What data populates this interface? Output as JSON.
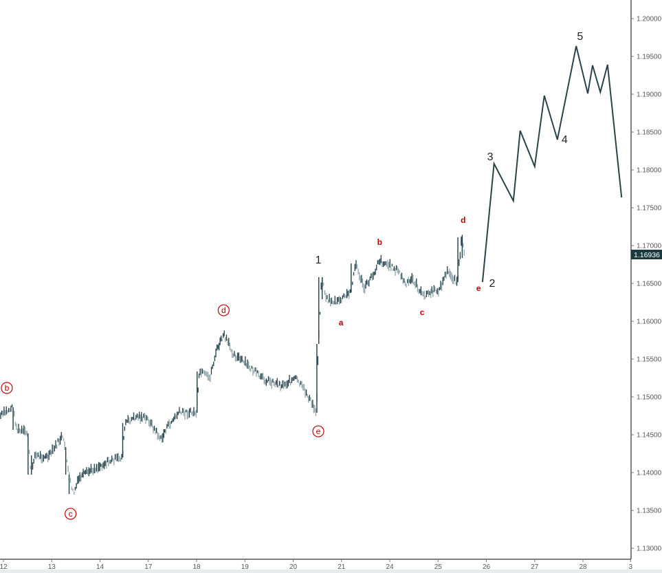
{
  "chart_data": {
    "type": "line",
    "title": "",
    "xlabel": "",
    "ylabel": "",
    "x_ticks": [
      "12",
      "13",
      "14",
      "17",
      "18",
      "19",
      "20",
      "21",
      "24",
      "25",
      "26",
      "27",
      "28",
      "3"
    ],
    "y_ticks": [
      "1.20000",
      "1.19500",
      "1.19000",
      "1.18500",
      "1.18000",
      "1.17500",
      "1.17000",
      "1.16500",
      "1.16000",
      "1.15500",
      "1.15000",
      "1.14500",
      "1.14000",
      "1.13500",
      "1.13000"
    ],
    "ylim": [
      1.13,
      1.2
    ],
    "grid": false,
    "current_price": "1.16936",
    "colors": {
      "bars_dark": "#1e3d44",
      "bars_light": "#8fa4a9",
      "projection": "#2b4348",
      "wave_labels": "#222222",
      "sub_labels": "#c00000",
      "price_tag": "#1b3a40"
    },
    "price_series": {
      "style": "bars",
      "points": [
        [
          11.93,
          1.14746
        ],
        [
          12.19,
          1.14864
        ],
        [
          12.28,
          1.14564
        ],
        [
          12.5,
          1.14518
        ],
        [
          12.57,
          1.13973
        ],
        [
          12.64,
          1.14227
        ],
        [
          12.93,
          1.142
        ],
        [
          13.21,
          1.14473
        ],
        [
          13.28,
          1.14336
        ],
        [
          13.35,
          1.13973
        ],
        [
          13.45,
          1.13718
        ],
        [
          13.57,
          1.13927
        ],
        [
          13.78,
          1.14018
        ],
        [
          14.21,
          1.14155
        ],
        [
          14.46,
          1.142
        ],
        [
          14.52,
          1.14655
        ],
        [
          14.78,
          1.14746
        ],
        [
          17.0,
          1.147
        ],
        [
          17.27,
          1.14427
        ],
        [
          17.35,
          1.14564
        ],
        [
          17.63,
          1.14791
        ],
        [
          18.0,
          1.14791
        ],
        [
          18.06,
          1.15336
        ],
        [
          18.27,
          1.15245
        ],
        [
          18.41,
          1.15609
        ],
        [
          18.56,
          1.15818
        ],
        [
          18.77,
          1.15564
        ],
        [
          19.2,
          1.15336
        ],
        [
          19.34,
          1.15245
        ],
        [
          19.77,
          1.15155
        ],
        [
          20.05,
          1.15245
        ],
        [
          20.26,
          1.15064
        ],
        [
          20.48,
          1.14791
        ],
        [
          20.52,
          1.157
        ],
        [
          20.59,
          1.16582
        ],
        [
          20.69,
          1.16291
        ],
        [
          20.9,
          1.16245
        ],
        [
          21.19,
          1.16382
        ],
        [
          21.29,
          1.16764
        ],
        [
          21.47,
          1.16427
        ],
        [
          21.69,
          1.16655
        ],
        [
          21.76,
          1.1681
        ],
        [
          21.97,
          1.16745
        ],
        [
          24.19,
          1.16655
        ],
        [
          24.33,
          1.16473
        ],
        [
          24.47,
          1.16564
        ],
        [
          24.68,
          1.16336
        ],
        [
          25.04,
          1.16427
        ],
        [
          25.18,
          1.16655
        ],
        [
          25.4,
          1.16518
        ],
        [
          25.49,
          1.17109
        ],
        [
          25.55,
          1.16836
        ]
      ]
    },
    "projection_series": {
      "style": "line",
      "points": [
        [
          25.92,
          1.16518
        ],
        [
          26.16,
          1.18082
        ],
        [
          26.56,
          1.17591
        ],
        [
          26.7,
          1.18518
        ],
        [
          27.0,
          1.18045
        ],
        [
          27.2,
          1.18982
        ],
        [
          27.47,
          1.184
        ],
        [
          27.86,
          1.19636
        ],
        [
          28.1,
          1.19009
        ],
        [
          28.2,
          1.19382
        ],
        [
          28.36,
          1.19027
        ],
        [
          28.51,
          1.19391
        ],
        [
          28.8,
          1.17636
        ]
      ]
    },
    "annotations": [
      {
        "text": "b",
        "style": "circled",
        "x": 12.07,
        "y": 1.15118
      },
      {
        "text": "c",
        "style": "circled",
        "x": 13.39,
        "y": 1.13455
      },
      {
        "text": "d",
        "style": "circled",
        "x": 18.56,
        "y": 1.16145
      },
      {
        "text": "e",
        "style": "circled",
        "x": 20.52,
        "y": 1.14545
      },
      {
        "text": "a",
        "style": "sub",
        "x": 20.99,
        "y": 1.15982
      },
      {
        "text": "b",
        "style": "sub",
        "x": 21.79,
        "y": 1.17045
      },
      {
        "text": "c",
        "style": "sub",
        "x": 24.67,
        "y": 1.16118
      },
      {
        "text": "d",
        "style": "sub",
        "x": 25.52,
        "y": 1.17336
      },
      {
        "text": "e",
        "style": "sub",
        "x": 25.84,
        "y": 1.16436
      },
      {
        "text": "1",
        "style": "wave",
        "x": 20.52,
        "y": 1.16818
      },
      {
        "text": "2",
        "style": "wave",
        "x": 26.12,
        "y": 1.16509
      },
      {
        "text": "3",
        "style": "wave",
        "x": 26.08,
        "y": 1.18182
      },
      {
        "text": "4",
        "style": "wave",
        "x": 27.62,
        "y": 1.1841
      },
      {
        "text": "5",
        "style": "wave",
        "x": 27.94,
        "y": 1.19773
      }
    ]
  }
}
